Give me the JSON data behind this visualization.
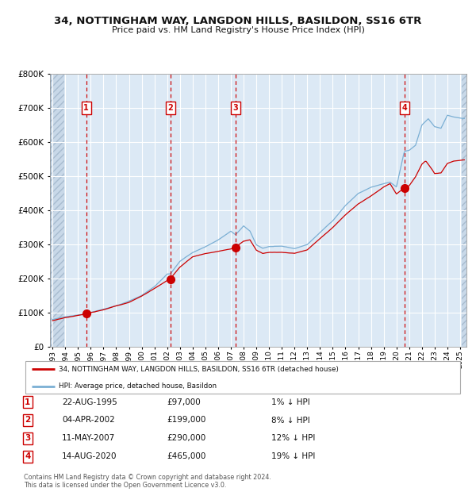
{
  "title_line1": "34, NOTTINGHAM WAY, LANGDON HILLS, BASILDON, SS16 6TR",
  "title_line2": "Price paid vs. HM Land Registry's House Price Index (HPI)",
  "background_color": "#dce9f5",
  "grid_color": "#ffffff",
  "red_line_color": "#cc0000",
  "blue_line_color": "#7bafd4",
  "marker_color": "#cc0000",
  "dashed_line_color": "#cc0000",
  "ylim": [
    0,
    800000
  ],
  "yticks": [
    0,
    100000,
    200000,
    300000,
    400000,
    500000,
    600000,
    700000,
    800000
  ],
  "ytick_labels": [
    "£0",
    "£100K",
    "£200K",
    "£300K",
    "£400K",
    "£500K",
    "£600K",
    "£700K",
    "£800K"
  ],
  "xmin_year": 1993,
  "xmax_year": 2025,
  "xtick_years": [
    1993,
    1994,
    1995,
    1996,
    1997,
    1998,
    1999,
    2000,
    2001,
    2002,
    2003,
    2004,
    2005,
    2006,
    2007,
    2008,
    2009,
    2010,
    2011,
    2012,
    2013,
    2014,
    2015,
    2016,
    2017,
    2018,
    2019,
    2020,
    2021,
    2022,
    2023,
    2024,
    2025
  ],
  "sale_dates": [
    1995.65,
    2002.26,
    2007.37,
    2020.62
  ],
  "sale_prices": [
    97000,
    199000,
    290000,
    465000
  ],
  "sale_labels": [
    "1",
    "2",
    "3",
    "4"
  ],
  "legend_red_label": "34, NOTTINGHAM WAY, LANGDON HILLS, BASILDON, SS16 6TR (detached house)",
  "legend_blue_label": "HPI: Average price, detached house, Basildon",
  "table_data": [
    [
      "1",
      "22-AUG-1995",
      "£97,000",
      "1% ↓ HPI"
    ],
    [
      "2",
      "04-APR-2002",
      "£199,000",
      "8% ↓ HPI"
    ],
    [
      "3",
      "11-MAY-2007",
      "£290,000",
      "12% ↓ HPI"
    ],
    [
      "4",
      "14-AUG-2020",
      "£465,000",
      "19% ↓ HPI"
    ]
  ],
  "footer_text": "Contains HM Land Registry data © Crown copyright and database right 2024.\nThis data is licensed under the Open Government Licence v3.0.",
  "hpi_waypoints": [
    [
      1993.0,
      80000
    ],
    [
      1994.0,
      88000
    ],
    [
      1995.0,
      94000
    ],
    [
      1995.65,
      98000
    ],
    [
      1996.0,
      102000
    ],
    [
      1997.0,
      112000
    ],
    [
      1998.0,
      122000
    ],
    [
      1999.0,
      135000
    ],
    [
      2000.0,
      152000
    ],
    [
      2001.0,
      178000
    ],
    [
      2002.0,
      215000
    ],
    [
      2002.26,
      216000
    ],
    [
      2003.0,
      252000
    ],
    [
      2004.0,
      278000
    ],
    [
      2005.0,
      295000
    ],
    [
      2006.0,
      315000
    ],
    [
      2007.0,
      340000
    ],
    [
      2007.37,
      330000
    ],
    [
      2008.0,
      355000
    ],
    [
      2008.5,
      340000
    ],
    [
      2009.0,
      300000
    ],
    [
      2009.5,
      290000
    ],
    [
      2010.0,
      295000
    ],
    [
      2011.0,
      295000
    ],
    [
      2012.0,
      288000
    ],
    [
      2013.0,
      300000
    ],
    [
      2014.0,
      335000
    ],
    [
      2015.0,
      370000
    ],
    [
      2016.0,
      415000
    ],
    [
      2017.0,
      450000
    ],
    [
      2018.0,
      468000
    ],
    [
      2019.0,
      478000
    ],
    [
      2019.5,
      482000
    ],
    [
      2020.0,
      468000
    ],
    [
      2020.62,
      572000
    ],
    [
      2021.0,
      575000
    ],
    [
      2021.5,
      590000
    ],
    [
      2022.0,
      650000
    ],
    [
      2022.5,
      668000
    ],
    [
      2023.0,
      645000
    ],
    [
      2023.5,
      640000
    ],
    [
      2024.0,
      678000
    ],
    [
      2024.5,
      672000
    ],
    [
      2025.3,
      668000
    ]
  ],
  "prop_waypoints": [
    [
      1993.0,
      77000
    ],
    [
      1994.0,
      85000
    ],
    [
      1995.0,
      92000
    ],
    [
      1995.65,
      97000
    ],
    [
      1996.0,
      100000
    ],
    [
      1997.0,
      108000
    ],
    [
      1998.0,
      120000
    ],
    [
      1999.0,
      130000
    ],
    [
      2000.0,
      148000
    ],
    [
      2001.0,
      170000
    ],
    [
      2002.0,
      192000
    ],
    [
      2002.26,
      199000
    ],
    [
      2003.0,
      232000
    ],
    [
      2004.0,
      262000
    ],
    [
      2005.0,
      272000
    ],
    [
      2006.0,
      278000
    ],
    [
      2007.0,
      285000
    ],
    [
      2007.37,
      290000
    ],
    [
      2008.0,
      308000
    ],
    [
      2008.5,
      312000
    ],
    [
      2009.0,
      282000
    ],
    [
      2009.5,
      272000
    ],
    [
      2010.0,
      275000
    ],
    [
      2011.0,
      275000
    ],
    [
      2012.0,
      272000
    ],
    [
      2013.0,
      282000
    ],
    [
      2014.0,
      315000
    ],
    [
      2015.0,
      348000
    ],
    [
      2016.0,
      385000
    ],
    [
      2017.0,
      418000
    ],
    [
      2018.0,
      442000
    ],
    [
      2019.0,
      468000
    ],
    [
      2019.5,
      478000
    ],
    [
      2020.0,
      448000
    ],
    [
      2020.62,
      465000
    ],
    [
      2021.0,
      472000
    ],
    [
      2021.5,
      498000
    ],
    [
      2022.0,
      535000
    ],
    [
      2022.3,
      545000
    ],
    [
      2022.8,
      520000
    ],
    [
      2023.0,
      508000
    ],
    [
      2023.5,
      510000
    ],
    [
      2024.0,
      538000
    ],
    [
      2024.5,
      545000
    ],
    [
      2025.3,
      548000
    ]
  ]
}
